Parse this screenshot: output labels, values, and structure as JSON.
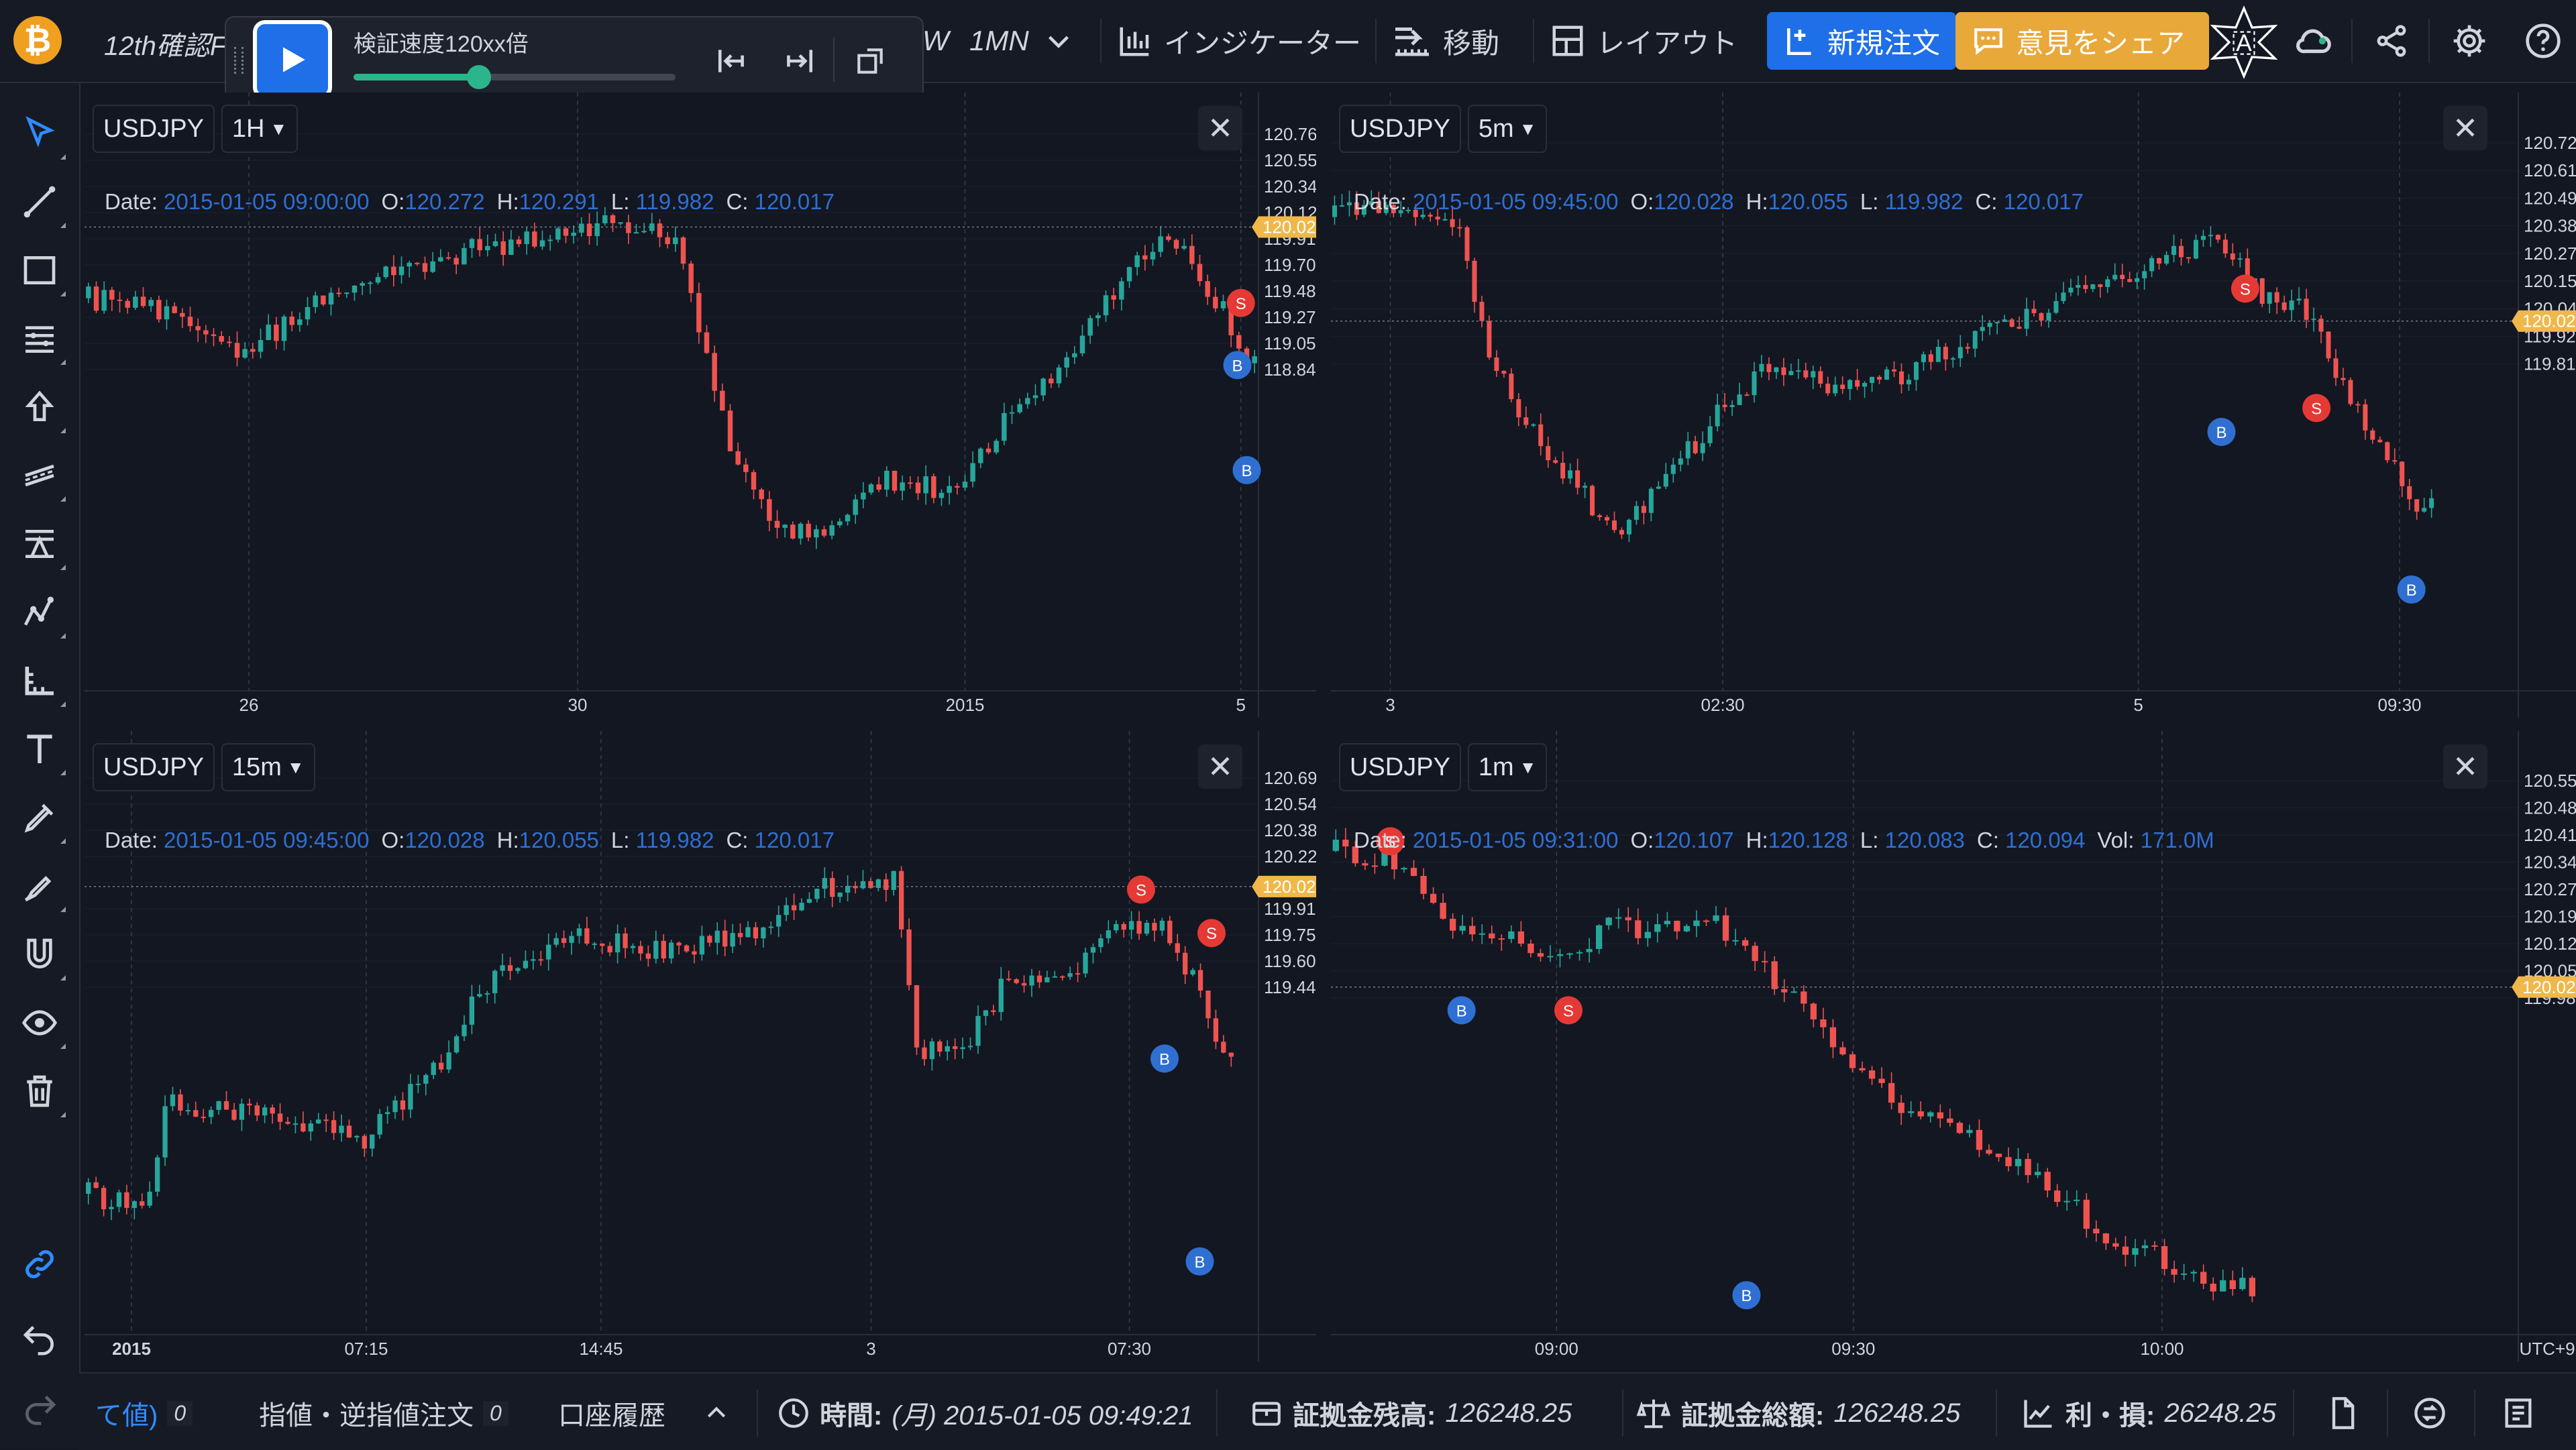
{
  "app": {
    "title_fragment": "12th確認F"
  },
  "replay": {
    "speed_label": "検証速度120xx倍",
    "speed_fraction": 0.39
  },
  "toolbar": {
    "interval_w": "W",
    "interval_mn": "1MN",
    "indicators": "インジケーター",
    "move": "移動",
    "layout": "レイアウト",
    "new_order": "新規注文",
    "share_idea": "意見をシェア"
  },
  "colors": {
    "up": "#26a69a",
    "down": "#ef5350",
    "accent": "#1e6fe8",
    "gold": "#e8a83a",
    "price_tag": "#f0b84a"
  },
  "left_tools": [
    "cursor-icon",
    "trendline-icon",
    "rectangle-icon",
    "fib-icon",
    "arrow-up-icon",
    "channel-icon",
    "pitchfork-icon",
    "pattern-icon",
    "measure-icon",
    "text-icon",
    "brush-icon",
    "pen-icon",
    "magnet-icon",
    "eye-icon",
    "trash-icon",
    "link-icon",
    "undo-icon",
    "redo-icon"
  ],
  "charts": [
    {
      "symbol": "USDJPY",
      "interval": "1H",
      "ohlc": {
        "date_label": "Date:",
        "date": "2015-01-05 09:00:00",
        "o_label": "O:",
        "o": "120.272",
        "h_label": "H:",
        "h": "120.291",
        "l_label": "L:",
        "l": "119.982",
        "c_label": "C:",
        "c": "120.017"
      },
      "price_axis": [
        "120.769",
        "120.555",
        "120.341",
        "120.127",
        "119.914",
        "119.700",
        "119.486",
        "119.272",
        "119.059",
        "118.845"
      ],
      "last_price": "120.022",
      "time_axis": [
        "26",
        "30",
        "2015",
        "5"
      ],
      "markers": [
        "S",
        "B",
        "B"
      ]
    },
    {
      "symbol": "USDJPY",
      "interval": "5m",
      "ohlc": {
        "date_label": "Date:",
        "date": "2015-01-05 09:45:00",
        "o_label": "O:",
        "o": "120.028",
        "h_label": "H:",
        "h": "120.055",
        "l_label": "L:",
        "l": "119.982",
        "c_label": "C:",
        "c": "120.017"
      },
      "price_axis": [
        "120.726",
        "120.612",
        "120.498",
        "120.384",
        "120.270",
        "120.156",
        "120.042",
        "119.928",
        "119.814"
      ],
      "last_price": "120.022",
      "time_axis": [
        "3",
        "02:30",
        "5",
        "09:30"
      ],
      "markers": [
        "S",
        "B",
        "S",
        "B"
      ]
    },
    {
      "symbol": "USDJPY",
      "interval": "15m",
      "ohlc": {
        "date_label": "Date:",
        "date": "2015-01-05 09:45:00",
        "o_label": "O:",
        "o": "120.028",
        "h_label": "H:",
        "h": "120.055",
        "l_label": "L:",
        "l": "119.982",
        "c_label": "C:",
        "c": "120.017"
      },
      "price_axis": [
        "120.697",
        "120.541",
        "120.384",
        "120.227",
        "120.070",
        "119.914",
        "119.757",
        "119.600",
        "119.443"
      ],
      "last_price": "120.022",
      "time_axis": [
        "2015",
        "07:15",
        "14:45",
        "3",
        "07:30"
      ],
      "markers": [
        "S",
        "S",
        "B",
        "B"
      ]
    },
    {
      "symbol": "USDJPY",
      "interval": "1m",
      "ohlc": {
        "date_label": "Date:",
        "date": "2015-01-05 09:31:00",
        "o_label": "O:",
        "o": "120.107",
        "h_label": "H:",
        "h": "120.128",
        "l_label": "L:",
        "l": "120.083",
        "c_label": "C:",
        "c": "120.094",
        "vol_label": "Vol:",
        "vol": "171.0M"
      },
      "price_axis": [
        "120.555",
        "120.484",
        "120.412",
        "120.341",
        "120.270",
        "120.199",
        "120.127",
        "120.056",
        "119.985"
      ],
      "last_price": "120.022",
      "time_axis": [
        "09:00",
        "09:30",
        "10:00",
        "UTC+9"
      ],
      "markers": [
        "S",
        "B",
        "S",
        "B"
      ]
    }
  ],
  "bottom": {
    "tab_partial": "て値)",
    "tab_partial_count": "0",
    "limit_orders": "指値・逆指値注文",
    "limit_orders_count": "0",
    "history": "口座履歴",
    "time_label": "時間:",
    "time_value": "(月) 2015-01-05 09:49:21",
    "margin_label": "証拠金残高:",
    "margin_value": "126248.25",
    "equity_label": "証拠金総額:",
    "equity_value": "126248.25",
    "pnl_label": "利・損:",
    "pnl_value": "26248.25"
  }
}
